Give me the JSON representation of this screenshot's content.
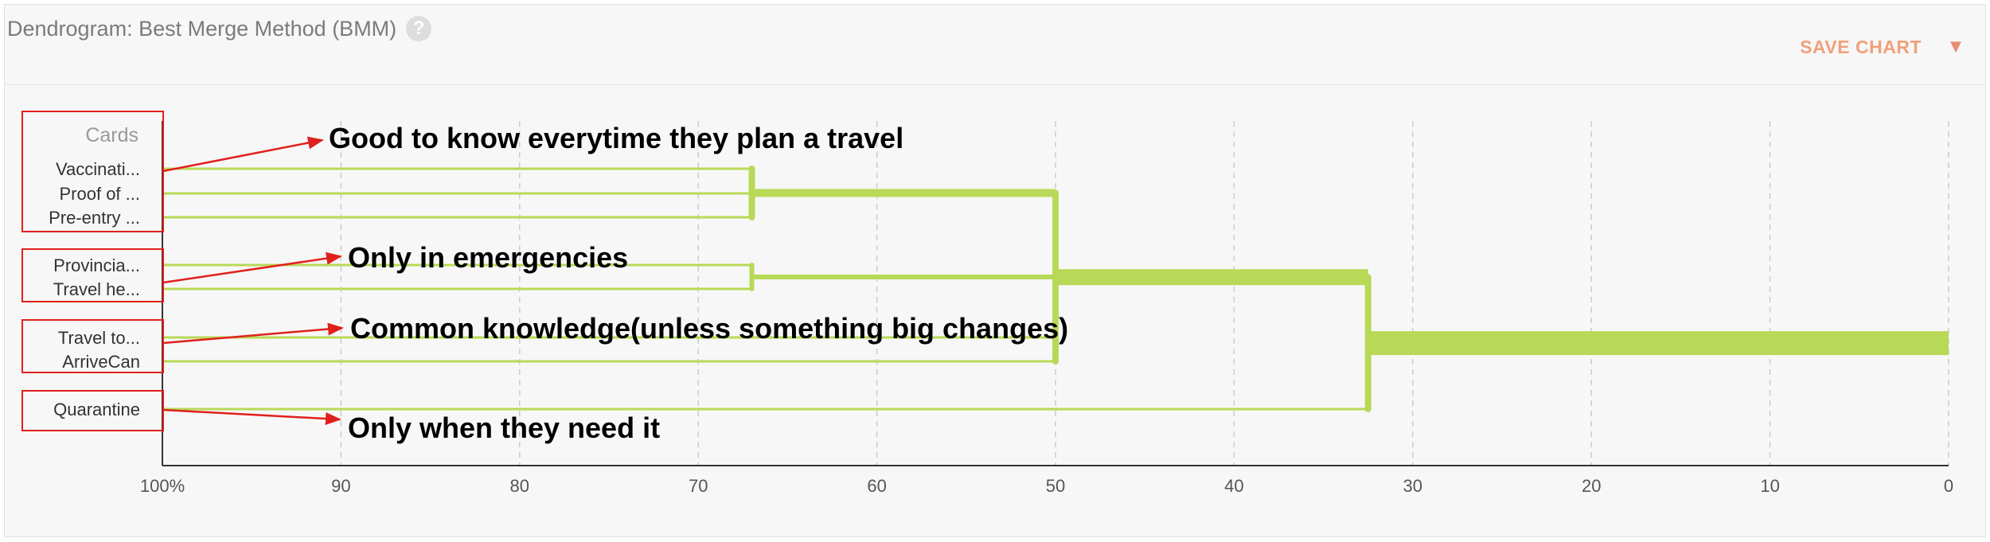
{
  "header": {
    "title": "Dendrogram: Best Merge Method (BMM)",
    "help_glyph": "?",
    "save_label": "SAVE CHART",
    "save_caret": "▼"
  },
  "colors": {
    "branch": "#b8d957",
    "axis": "#333333",
    "grid": "#cccccc",
    "annotation": "#e0201c",
    "tick_text": "#555555",
    "save": "#f0a07a"
  },
  "chart_data": {
    "type": "dendrogram",
    "x_axis": {
      "range": [
        100,
        0
      ],
      "ticks": [
        {
          "value": 100,
          "label": "100%"
        },
        {
          "value": 90,
          "label": "90"
        },
        {
          "value": 80,
          "label": "80"
        },
        {
          "value": 70,
          "label": "70"
        },
        {
          "value": 60,
          "label": "60"
        },
        {
          "value": 50,
          "label": "50"
        },
        {
          "value": 40,
          "label": "40"
        },
        {
          "value": 30,
          "label": "30"
        },
        {
          "value": 20,
          "label": "20"
        },
        {
          "value": 10,
          "label": "10"
        },
        {
          "value": 0,
          "label": "0"
        }
      ],
      "grid": "dashed"
    },
    "y_axis_title": "Cards",
    "leaves": [
      "Vaccinati...",
      "Proof of ...",
      "Pre-entry ...",
      "Provincia...",
      "Travel he...",
      "Travel to...",
      "ArriveCan",
      "Quarantine"
    ],
    "merges": [
      {
        "id": "m1",
        "children": [
          "Vaccinati...",
          "Proof of ...",
          "Pre-entry ..."
        ],
        "height": 67,
        "weight": 3
      },
      {
        "id": "m2",
        "children": [
          "Provincia...",
          "Travel he..."
        ],
        "height": 67,
        "weight": 2
      },
      {
        "id": "m3",
        "children": [
          "m1",
          "m2",
          "Travel to...",
          "ArriveCan"
        ],
        "height": 50,
        "weight": 7
      },
      {
        "id": "m4",
        "children": [
          "m3",
          "Quarantine"
        ],
        "height": 32.5,
        "weight": 8
      }
    ],
    "annotations": [
      {
        "label": "Good to know everytime they plan a travel",
        "group": [
          "Vaccinati...",
          "Proof of ...",
          "Pre-entry ..."
        ]
      },
      {
        "label": "Only in emergencies",
        "group": [
          "Provincia...",
          "Travel he..."
        ]
      },
      {
        "label": "Common knowledge(unless something big changes)",
        "group": [
          "Travel to...",
          "ArriveCan"
        ]
      },
      {
        "label": "Only when they need it",
        "group": [
          "Quarantine"
        ]
      }
    ]
  }
}
